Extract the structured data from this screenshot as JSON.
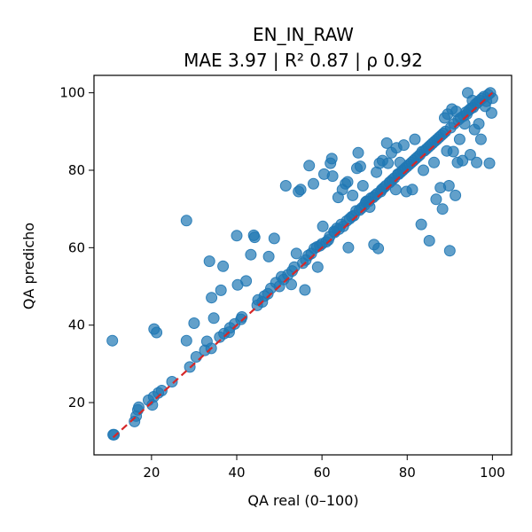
{
  "chart_data": {
    "type": "scatter",
    "title": "EN_IN_RAW",
    "subtitle": "MAE 3.97 | R² 0.87 | ρ 0.92",
    "xlabel": "QA real (0–100)",
    "ylabel": "QA predicho",
    "xlim": [
      6.5,
      104.5
    ],
    "ylim": [
      6.5,
      104.5
    ],
    "xticks": [
      20,
      40,
      60,
      80,
      100
    ],
    "yticks": [
      20,
      40,
      60,
      80,
      100
    ],
    "grid": false,
    "colors": {
      "points": "#1f77b4",
      "identity_line": "#d62728"
    },
    "identity_line": {
      "from": [
        11,
        11
      ],
      "to": [
        100,
        100
      ]
    },
    "points": [
      [
        10.8,
        36.0
      ],
      [
        11.0,
        11.7
      ],
      [
        11.2,
        11.7
      ],
      [
        16.0,
        15.1
      ],
      [
        16.4,
        16.5
      ],
      [
        16.8,
        18.1
      ],
      [
        17.0,
        18.8
      ],
      [
        19.3,
        20.6
      ],
      [
        20.2,
        19.4
      ],
      [
        20.5,
        21.5
      ],
      [
        20.6,
        39.0
      ],
      [
        21.2,
        38.1
      ],
      [
        21.6,
        22.5
      ],
      [
        22.4,
        23.1
      ],
      [
        24.8,
        25.4
      ],
      [
        28.2,
        36.0
      ],
      [
        28.2,
        67.0
      ],
      [
        29.0,
        29.2
      ],
      [
        30.0,
        40.5
      ],
      [
        30.5,
        31.8
      ],
      [
        32.5,
        33.5
      ],
      [
        33.0,
        35.8
      ],
      [
        33.6,
        56.5
      ],
      [
        34.0,
        34.0
      ],
      [
        34.1,
        47.1
      ],
      [
        34.6,
        41.8
      ],
      [
        36.0,
        36.9
      ],
      [
        36.3,
        49.0
      ],
      [
        36.8,
        55.2
      ],
      [
        37.0,
        37.8
      ],
      [
        38.2,
        38.2
      ],
      [
        38.4,
        39.3
      ],
      [
        39.5,
        40.3
      ],
      [
        40.0,
        63.1
      ],
      [
        40.2,
        50.4
      ],
      [
        41.0,
        41.5
      ],
      [
        41.2,
        42.1
      ],
      [
        42.2,
        51.4
      ],
      [
        43.3,
        58.2
      ],
      [
        44.0,
        63.2
      ],
      [
        44.2,
        62.7
      ],
      [
        44.8,
        45.1
      ],
      [
        45.0,
        46.5
      ],
      [
        46.0,
        46.0
      ],
      [
        46.5,
        47.5
      ],
      [
        47.3,
        48.1
      ],
      [
        47.5,
        57.7
      ],
      [
        48.0,
        49.5
      ],
      [
        48.8,
        62.4
      ],
      [
        49.2,
        51.0
      ],
      [
        50.0,
        50.0
      ],
      [
        50.5,
        52.5
      ],
      [
        51.0,
        51.8
      ],
      [
        51.5,
        76.0
      ],
      [
        52.0,
        53.0
      ],
      [
        52.8,
        50.5
      ],
      [
        53.0,
        54.0
      ],
      [
        53.5,
        55.0
      ],
      [
        54.0,
        58.5
      ],
      [
        54.5,
        74.5
      ],
      [
        55.0,
        75.0
      ],
      [
        55.5,
        56.0
      ],
      [
        56.0,
        49.1
      ],
      [
        56.2,
        56.8
      ],
      [
        56.8,
        58.0
      ],
      [
        57.0,
        81.2
      ],
      [
        57.5,
        58.5
      ],
      [
        58.0,
        76.5
      ],
      [
        58.2,
        59.8
      ],
      [
        58.8,
        60.2
      ],
      [
        59.0,
        55.0
      ],
      [
        59.5,
        60.5
      ],
      [
        60.0,
        61.0
      ],
      [
        60.2,
        65.5
      ],
      [
        60.5,
        79.0
      ],
      [
        61.0,
        61.5
      ],
      [
        61.5,
        62.0
      ],
      [
        61.8,
        62.9
      ],
      [
        62.0,
        81.8
      ],
      [
        62.3,
        83.0
      ],
      [
        62.5,
        78.5
      ],
      [
        62.8,
        64.2
      ],
      [
        63.0,
        64.0
      ],
      [
        63.5,
        65.0
      ],
      [
        63.8,
        73.0
      ],
      [
        64.0,
        64.8
      ],
      [
        64.5,
        66.0
      ],
      [
        64.8,
        75.0
      ],
      [
        65.0,
        65.5
      ],
      [
        65.5,
        76.5
      ],
      [
        65.8,
        66.9
      ],
      [
        66.0,
        77.0
      ],
      [
        66.2,
        60.0
      ],
      [
        66.5,
        67.5
      ],
      [
        67.0,
        68.0
      ],
      [
        67.2,
        73.5
      ],
      [
        67.5,
        68.3
      ],
      [
        68.0,
        69.5
      ],
      [
        68.2,
        80.5
      ],
      [
        68.5,
        84.5
      ],
      [
        68.8,
        69.7
      ],
      [
        69.0,
        81.0
      ],
      [
        69.3,
        70.2
      ],
      [
        69.6,
        76.0
      ],
      [
        70.0,
        71.0
      ],
      [
        70.3,
        71.8
      ],
      [
        70.5,
        72.0
      ],
      [
        71.0,
        72.0
      ],
      [
        71.2,
        70.5
      ],
      [
        71.5,
        72.8
      ],
      [
        72.0,
        73.0
      ],
      [
        72.2,
        60.8
      ],
      [
        72.5,
        73.5
      ],
      [
        72.8,
        79.5
      ],
      [
        73.0,
        74.0
      ],
      [
        73.2,
        59.8
      ],
      [
        73.5,
        81.8
      ],
      [
        73.8,
        74.5
      ],
      [
        74.0,
        75.0
      ],
      [
        74.2,
        82.5
      ],
      [
        74.5,
        75.5
      ],
      [
        75.0,
        76.0
      ],
      [
        75.2,
        87.0
      ],
      [
        75.5,
        81.8
      ],
      [
        75.8,
        76.8
      ],
      [
        76.0,
        77.0
      ],
      [
        76.3,
        84.5
      ],
      [
        76.5,
        77.5
      ],
      [
        77.0,
        78.0
      ],
      [
        77.3,
        75.0
      ],
      [
        77.5,
        85.8
      ],
      [
        77.8,
        79.0
      ],
      [
        78.0,
        79.0
      ],
      [
        78.3,
        82.0
      ],
      [
        78.5,
        79.5
      ],
      [
        79.0,
        80.0
      ],
      [
        79.2,
        86.5
      ],
      [
        79.5,
        80.5
      ],
      [
        79.8,
        74.5
      ],
      [
        80.0,
        81.0
      ],
      [
        80.5,
        81.5
      ],
      [
        81.0,
        82.0
      ],
      [
        81.2,
        75.0
      ],
      [
        81.5,
        82.5
      ],
      [
        81.8,
        88.0
      ],
      [
        82.0,
        83.0
      ],
      [
        82.5,
        83.5
      ],
      [
        83.0,
        84.0
      ],
      [
        83.3,
        66.0
      ],
      [
        83.5,
        84.8
      ],
      [
        83.8,
        80.0
      ],
      [
        84.0,
        85.0
      ],
      [
        84.5,
        85.5
      ],
      [
        85.0,
        86.0
      ],
      [
        85.2,
        61.8
      ],
      [
        85.5,
        86.5
      ],
      [
        86.0,
        87.0
      ],
      [
        86.3,
        82.0
      ],
      [
        86.5,
        87.5
      ],
      [
        86.8,
        72.5
      ],
      [
        87.0,
        88.0
      ],
      [
        87.5,
        88.5
      ],
      [
        87.8,
        75.5
      ],
      [
        88.0,
        89.0
      ],
      [
        88.3,
        70.0
      ],
      [
        88.5,
        89.5
      ],
      [
        88.8,
        93.5
      ],
      [
        89.0,
        90.0
      ],
      [
        89.3,
        85.0
      ],
      [
        89.5,
        94.5
      ],
      [
        89.8,
        76.0
      ],
      [
        90.0,
        59.2
      ],
      [
        90.2,
        91.0
      ],
      [
        90.5,
        95.8
      ],
      [
        90.8,
        84.8
      ],
      [
        91.0,
        92.0
      ],
      [
        91.3,
        73.5
      ],
      [
        91.5,
        95.2
      ],
      [
        91.8,
        82.0
      ],
      [
        92.0,
        93.0
      ],
      [
        92.3,
        88.0
      ],
      [
        92.5,
        93.5
      ],
      [
        93.0,
        82.5
      ],
      [
        93.2,
        94.0
      ],
      [
        93.5,
        92.0
      ],
      [
        93.8,
        95.0
      ],
      [
        94.0,
        94.5
      ],
      [
        94.2,
        100.0
      ],
      [
        94.5,
        95.5
      ],
      [
        94.8,
        84.0
      ],
      [
        95.0,
        96.0
      ],
      [
        95.3,
        98.0
      ],
      [
        95.5,
        96.2
      ],
      [
        95.8,
        90.5
      ],
      [
        96.0,
        97.0
      ],
      [
        96.3,
        82.0
      ],
      [
        96.5,
        97.5
      ],
      [
        96.8,
        92.0
      ],
      [
        97.0,
        98.0
      ],
      [
        97.3,
        88.0
      ],
      [
        97.5,
        98.5
      ],
      [
        98.0,
        99.0
      ],
      [
        98.3,
        96.5
      ],
      [
        98.6,
        97.8
      ],
      [
        99.0,
        99.5
      ],
      [
        99.3,
        81.8
      ],
      [
        99.5,
        100.0
      ],
      [
        99.8,
        94.8
      ],
      [
        100.0,
        98.6
      ]
    ]
  }
}
